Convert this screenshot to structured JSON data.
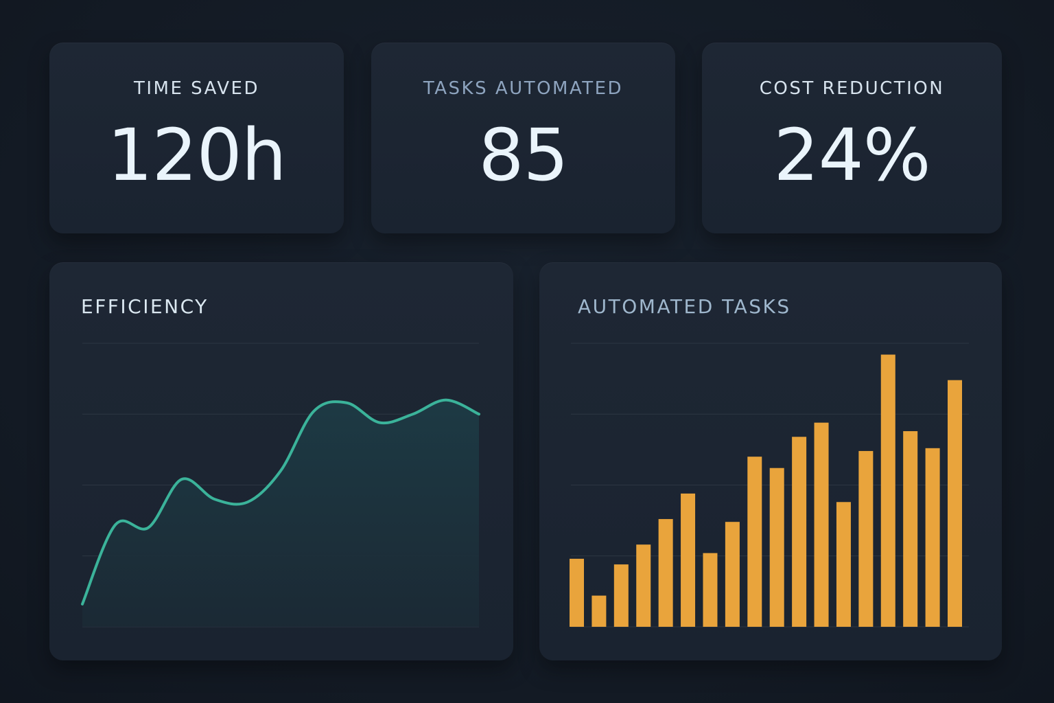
{
  "colors": {
    "background": "#131b26",
    "card": "#1c2531",
    "line": "#3bb39a",
    "area": "#1d3b45",
    "bar": "#e9a43c",
    "grid": "#2c3643"
  },
  "kpis": {
    "time_saved": {
      "label": "TIME SAVED",
      "value": "120h"
    },
    "tasks_automated": {
      "label": "TASKS AUTOMATED",
      "value": "85"
    },
    "cost_reduction": {
      "label": "COST REDUCTION",
      "value": "24%"
    }
  },
  "chart_data": [
    {
      "type": "area",
      "title": "EFFICIENCY",
      "x": [
        0,
        1,
        2,
        3,
        4,
        5,
        6,
        7,
        8,
        9,
        10,
        11,
        12
      ],
      "values": [
        8,
        36,
        35,
        52,
        45,
        44,
        55,
        76,
        79,
        72,
        75,
        80,
        75
      ],
      "ylim": [
        0,
        100
      ],
      "grid": true
    },
    {
      "type": "bar",
      "title": "AUTOMATED TASKS",
      "categories": [
        "1",
        "2",
        "3",
        "4",
        "5",
        "6",
        "7",
        "8",
        "9",
        "10",
        "11",
        "12",
        "13",
        "14",
        "15",
        "16",
        "17",
        "18"
      ],
      "values": [
        24,
        11,
        22,
        29,
        38,
        47,
        26,
        37,
        60,
        56,
        67,
        72,
        44,
        62,
        96,
        69,
        63,
        87
      ],
      "ylim": [
        0,
        100
      ],
      "grid": true
    }
  ]
}
